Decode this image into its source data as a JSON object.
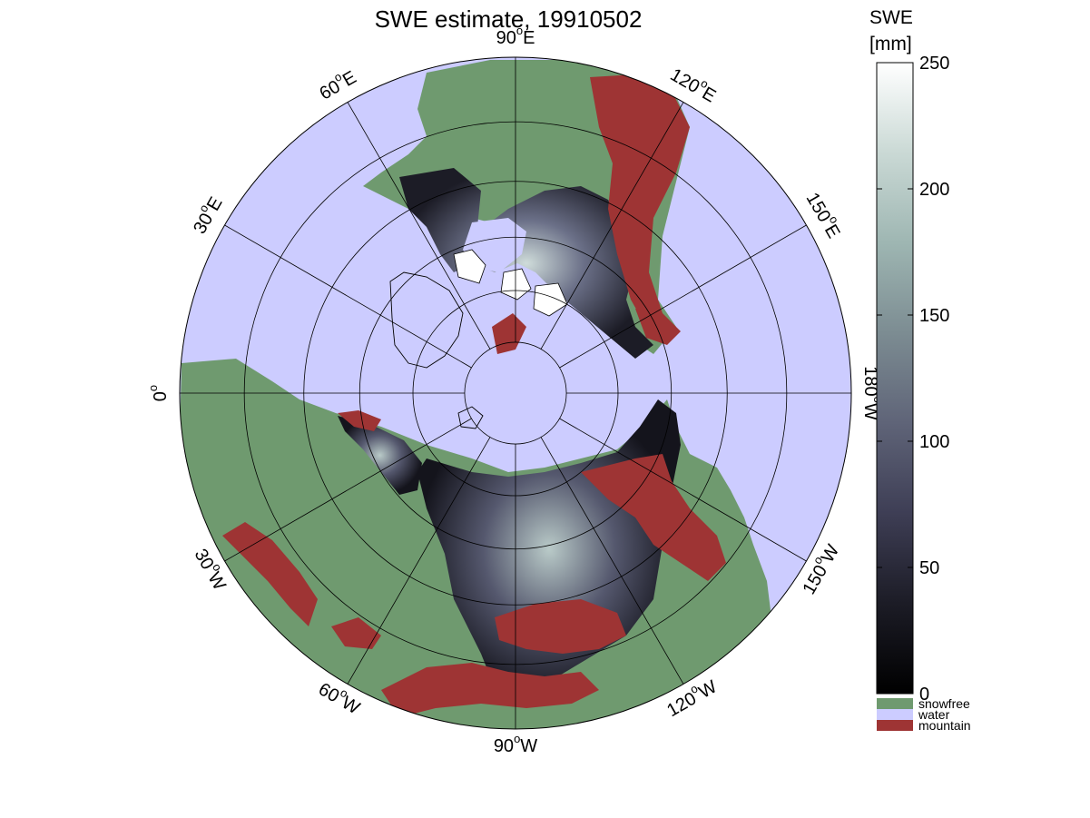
{
  "title": "SWE estimate, 19910502",
  "projection": "north-polar stereographic",
  "graticule": {
    "latitude_circles_deg": [
      40,
      50,
      60,
      70,
      80
    ],
    "meridian_step_deg": 30,
    "longitude_labels": [
      {
        "lon": 0,
        "text": "0",
        "deg": "o"
      },
      {
        "lon": 30,
        "text": "30",
        "deg": "o",
        "suffix": "E"
      },
      {
        "lon": 60,
        "text": "60",
        "deg": "o",
        "suffix": "E"
      },
      {
        "lon": 90,
        "text": "90",
        "deg": "o",
        "suffix": "E"
      },
      {
        "lon": 120,
        "text": "120",
        "deg": "o",
        "suffix": "E"
      },
      {
        "lon": 150,
        "text": "150",
        "deg": "o",
        "suffix": "E"
      },
      {
        "lon": 180,
        "text": "180",
        "deg": "o",
        "suffix": "W"
      },
      {
        "lon": -150,
        "text": "150",
        "deg": "o",
        "suffix": "W"
      },
      {
        "lon": -120,
        "text": "120",
        "deg": "o",
        "suffix": "W"
      },
      {
        "lon": -90,
        "text": "90",
        "deg": "o",
        "suffix": "W"
      },
      {
        "lon": -60,
        "text": "60",
        "deg": "o",
        "suffix": "W"
      },
      {
        "lon": -30,
        "text": "30",
        "deg": "o",
        "suffix": "W"
      }
    ]
  },
  "colorbar": {
    "title_line1": "SWE",
    "title_line2": "[mm]",
    "min": 0,
    "max": 250,
    "ticks": [
      "0",
      "50",
      "100",
      "150",
      "200",
      "250"
    ],
    "gradient": [
      "#000000",
      "#1c1c26",
      "#3e3e55",
      "#5f6478",
      "#7c8c92",
      "#9eb6b2",
      "#cad9d5",
      "#ffffff"
    ],
    "categories": [
      {
        "label": "snowfree",
        "color": "#6f9a6f"
      },
      {
        "label": "water",
        "color": "#ccccff"
      },
      {
        "label": "mountain",
        "color": "#9e3434"
      }
    ]
  },
  "colors": {
    "water": "#ccccff",
    "snowfree": "#6f9a6f",
    "mountain": "#9e3434",
    "snow_dark": "#1c1c26",
    "snow_mid": "#55586e",
    "snow_light": "#cfdcda"
  }
}
